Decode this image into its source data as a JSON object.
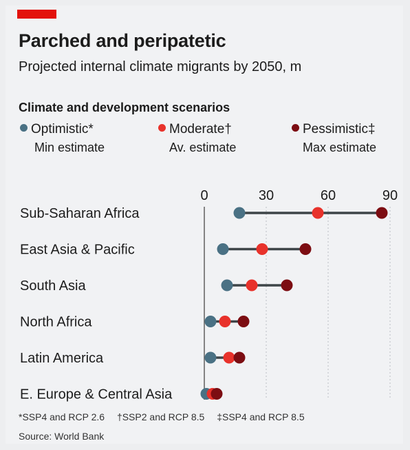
{
  "header": {
    "title": "Parched and peripatetic",
    "subtitle": "Projected internal climate migrants by 2050, m"
  },
  "legend": {
    "title": "Climate and development scenarios",
    "items": [
      {
        "label": "Optimistic*",
        "sub": "Min estimate",
        "color": "#4a7184"
      },
      {
        "label": "Moderate†",
        "sub": "Av. estimate",
        "color": "#e8322b"
      },
      {
        "label": "Pessimistic‡",
        "sub": "Max estimate",
        "color": "#7c0d12"
      }
    ]
  },
  "chart_data": {
    "type": "dot-range",
    "xlim": [
      0,
      90
    ],
    "xticks": [
      "0",
      "30",
      "60",
      "90"
    ],
    "categories": [
      "Sub-Saharan Africa",
      "East Asia & Pacific",
      "South Asia",
      "North Africa",
      "Latin America",
      "E. Europe & Central Asia"
    ],
    "series": [
      {
        "name": "Optimistic*",
        "values": [
          17,
          9,
          11,
          3,
          3,
          1
        ],
        "color": "#4a7184"
      },
      {
        "name": "Moderate†",
        "values": [
          55,
          28,
          23,
          10,
          12,
          4
        ],
        "color": "#e8322b"
      },
      {
        "name": "Pessimistic‡",
        "values": [
          86,
          49,
          40,
          19,
          17,
          6
        ],
        "color": "#7c0d12"
      }
    ],
    "grid": true
  },
  "footer": {
    "notes": [
      "*SSP4 and RCP 2.6",
      "†SSP2 and RCP 8.5",
      "‡SSP4 and RCP 8.5"
    ],
    "source": "Source: World Bank"
  }
}
